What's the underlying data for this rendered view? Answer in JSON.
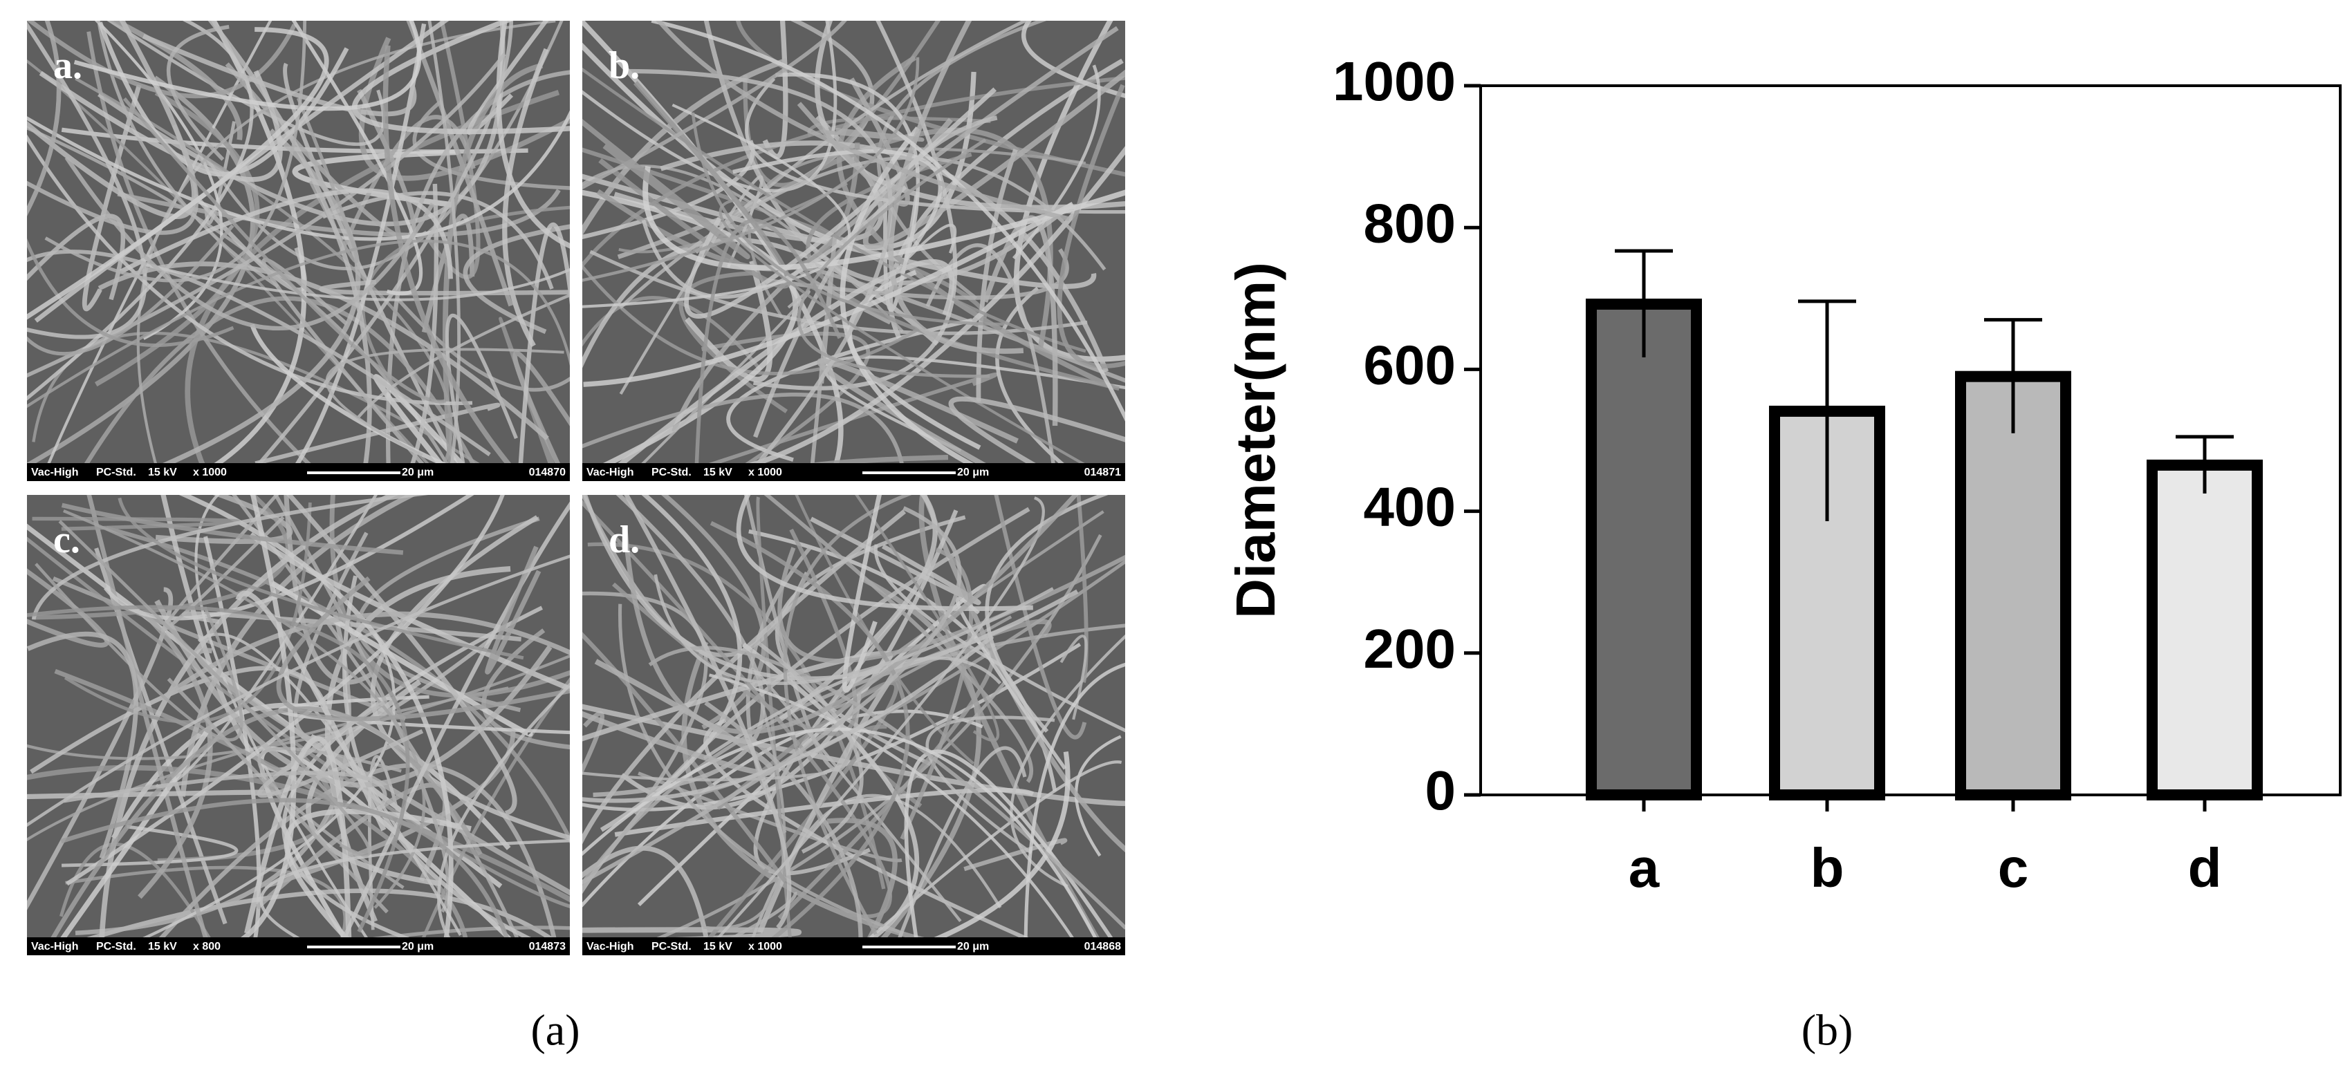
{
  "figure": {
    "panels": [
      {
        "label": "a.",
        "vac": "Vac-High",
        "mode": "PC-Std.",
        "kv": "15 kV",
        "mag": "x 1000",
        "scale": "20 μm",
        "id": "014870"
      },
      {
        "label": "b.",
        "vac": "Vac-High",
        "mode": "PC-Std.",
        "kv": "15 kV",
        "mag": "x 1000",
        "scale": "20 μm",
        "id": "014871"
      },
      {
        "label": "c.",
        "vac": "Vac-High",
        "mode": "PC-Std.",
        "kv": "15 kV",
        "mag": "x 800",
        "scale": "20 μm",
        "id": "014873"
      },
      {
        "label": "d.",
        "vac": "Vac-High",
        "mode": "PC-Std.",
        "kv": "15 kV",
        "mag": "x 1000",
        "scale": "20 μm",
        "id": "014868"
      }
    ],
    "captions": [
      "(a)",
      "(b)"
    ]
  },
  "chart_data": {
    "type": "bar",
    "ylabel": "Diameter(nm)",
    "categories": [
      "a",
      "b",
      "c",
      "d"
    ],
    "values": [
      692,
      541,
      590,
      465
    ],
    "errors": [
      75,
      155,
      80,
      40
    ],
    "colors": [
      "#6b6b6b",
      "#d2d2d2",
      "#b9b9b9",
      "#e8e8e8"
    ],
    "ylim": [
      0,
      1000
    ],
    "yticks": [
      0,
      200,
      400,
      600,
      800,
      1000
    ],
    "grid": false
  }
}
